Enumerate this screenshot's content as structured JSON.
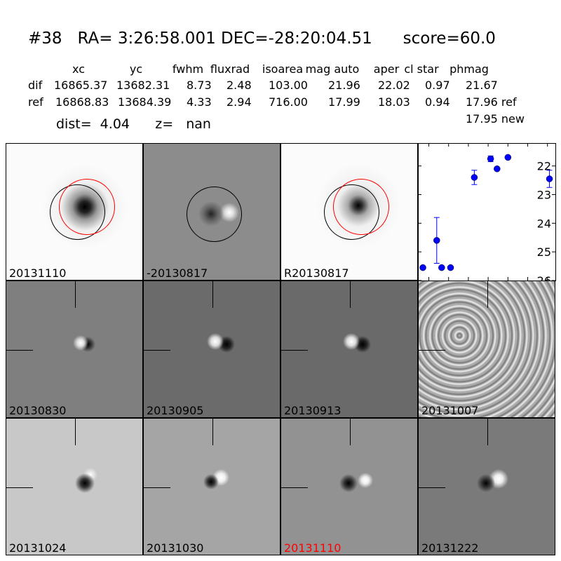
{
  "title": "#38   RA= 3:26:58.001 DEC=-28:20:04.51      score=60.0",
  "table": {
    "headers": [
      "xc",
      "yc",
      "fwhm",
      "fluxrad",
      "isoarea",
      "mag auto",
      "aper",
      "cl star",
      "phmag"
    ],
    "rows": [
      {
        "label": "dif",
        "values": [
          "16865.37",
          "13682.31",
          "8.73",
          "2.48",
          "103.00",
          "21.96",
          "22.02",
          "0.97",
          "21.67"
        ]
      },
      {
        "label": "ref",
        "values": [
          "16868.83",
          "13684.39",
          "4.33",
          "2.94",
          "716.00",
          "17.99",
          "18.03",
          "0.94",
          "17.96 ref"
        ]
      }
    ],
    "extra": "17.95 new"
  },
  "dist": "dist=  4.04      z=   nan",
  "stamps": [
    {
      "label": "20131110"
    },
    {
      "label": "-20130817"
    },
    {
      "label": "R20130817"
    },
    {
      "label": "20130830"
    },
    {
      "label": "20130905"
    },
    {
      "label": "20130913"
    },
    {
      "label": "20131007"
    },
    {
      "label": "20131024"
    },
    {
      "label": "20131030"
    },
    {
      "label": "20131110",
      "color": "#ff0000"
    },
    {
      "label": "20131222"
    }
  ],
  "chart_data": {
    "type": "scatter",
    "title": "",
    "xlabel": "",
    "ylabel": "",
    "xlim": [
      -91,
      48
    ],
    "ylim": [
      26,
      21.2
    ],
    "y_inverted": true,
    "xticks": [
      -80,
      -60,
      -40,
      -20,
      0,
      20,
      40
    ],
    "yticks": [
      22,
      23,
      24,
      25,
      26
    ],
    "color": "#0000ff",
    "points": [
      {
        "x": -86,
        "y": 25.55,
        "err": 0.05
      },
      {
        "x": -72,
        "y": 24.6,
        "err": 0.8
      },
      {
        "x": -67,
        "y": 25.55,
        "err": 0.05
      },
      {
        "x": -58,
        "y": 25.55,
        "err": 0.05
      },
      {
        "x": -34,
        "y": 22.4,
        "err": 0.25
      },
      {
        "x": -17.5,
        "y": 21.75,
        "err": 0.1
      },
      {
        "x": -11,
        "y": 22.1,
        "err": 0
      },
      {
        "x": 0,
        "y": 21.7,
        "err": 0
      },
      {
        "x": 42,
        "y": 22.45,
        "err": 0.3
      }
    ]
  }
}
